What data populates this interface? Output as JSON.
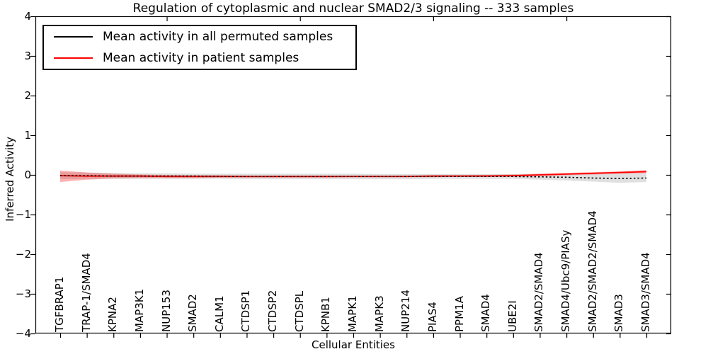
{
  "title": "Regulation of cytoplasmic and nuclear SMAD2/3 signaling -- 333 samples",
  "legend": {
    "items": [
      {
        "label": "Mean activity in all permuted samples",
        "color": "#000000"
      },
      {
        "label": "Mean activity in patient samples",
        "color": "#ff0000"
      }
    ]
  },
  "chart_data": {
    "type": "line",
    "title": "Regulation of cytoplasmic and nuclear SMAD2/3 signaling -- 333 samples",
    "xlabel": "Cellular Entities",
    "ylabel": "Inferred Activity",
    "ylim": [
      -4,
      4
    ],
    "yticks": [
      4,
      3,
      2,
      1,
      0,
      -1,
      -2,
      -3,
      -4
    ],
    "grid": false,
    "legend_position": "upper left",
    "categories": [
      "TGFBRAP1",
      "TRAP-1/SMAD4",
      "KPNA2",
      "MAP3K1",
      "NUP153",
      "SMAD2",
      "CALM1",
      "CTDSP1",
      "CTDSP2",
      "CTDSPL",
      "KPNB1",
      "MAPK1",
      "MAPK3",
      "NUP214",
      "PIAS4",
      "PPM1A",
      "SMAD4",
      "UBE2I",
      "SMAD2/SMAD4",
      "SMAD4/Ubc9/PIASy",
      "SMAD2/SMAD2/SMAD4",
      "SMAD3",
      "SMAD3/SMAD4"
    ],
    "top_tick_indices": [
      4,
      9,
      14,
      19
    ],
    "series": [
      {
        "name": "Mean activity in all permuted samples",
        "color": "#000000",
        "line_style": "dashed",
        "values": [
          -0.02,
          -0.02,
          -0.03,
          -0.03,
          -0.03,
          -0.03,
          -0.04,
          -0.04,
          -0.04,
          -0.04,
          -0.04,
          -0.04,
          -0.04,
          -0.04,
          -0.04,
          -0.04,
          -0.04,
          -0.04,
          -0.05,
          -0.06,
          -0.08,
          -0.09,
          -0.08
        ],
        "band_upper": [
          0.07,
          0.06,
          0.05,
          0.04,
          0.04,
          0.03,
          0.03,
          0.03,
          0.03,
          0.03,
          0.03,
          0.03,
          0.02,
          0.02,
          0.02,
          0.02,
          0.02,
          0.02,
          0.03,
          0.03,
          0.03,
          0.04,
          0.04
        ],
        "band_lower": [
          -0.11,
          -0.1,
          -0.1,
          -0.1,
          -0.1,
          -0.1,
          -0.1,
          -0.11,
          -0.11,
          -0.11,
          -0.11,
          -0.11,
          -0.11,
          -0.11,
          -0.1,
          -0.1,
          -0.1,
          -0.1,
          -0.12,
          -0.14,
          -0.17,
          -0.2,
          -0.18
        ],
        "band_color": "#000000",
        "band_opacity": 0.12
      },
      {
        "name": "Mean activity in patient samples",
        "color": "#ff0000",
        "line_style": "solid",
        "values": [
          -0.02,
          -0.03,
          -0.03,
          -0.03,
          -0.04,
          -0.04,
          -0.04,
          -0.04,
          -0.04,
          -0.04,
          -0.04,
          -0.04,
          -0.04,
          -0.04,
          -0.03,
          -0.03,
          -0.03,
          -0.02,
          0.0,
          0.02,
          0.04,
          0.06,
          0.08
        ],
        "band_upper": [
          0.11,
          0.06,
          0.03,
          0.01,
          0.0,
          -0.01,
          -0.01,
          -0.02,
          -0.02,
          -0.02,
          -0.02,
          -0.02,
          -0.02,
          -0.02,
          -0.01,
          -0.01,
          0.0,
          0.01,
          0.03,
          0.05,
          0.07,
          0.09,
          0.12
        ],
        "band_lower": [
          -0.18,
          -0.12,
          -0.09,
          -0.08,
          -0.08,
          -0.08,
          -0.07,
          -0.07,
          -0.07,
          -0.07,
          -0.07,
          -0.06,
          -0.06,
          -0.06,
          -0.06,
          -0.05,
          -0.05,
          -0.05,
          -0.03,
          -0.01,
          0.01,
          0.03,
          0.04
        ],
        "band_color": "#ff0000",
        "band_opacity": 0.3
      }
    ]
  }
}
